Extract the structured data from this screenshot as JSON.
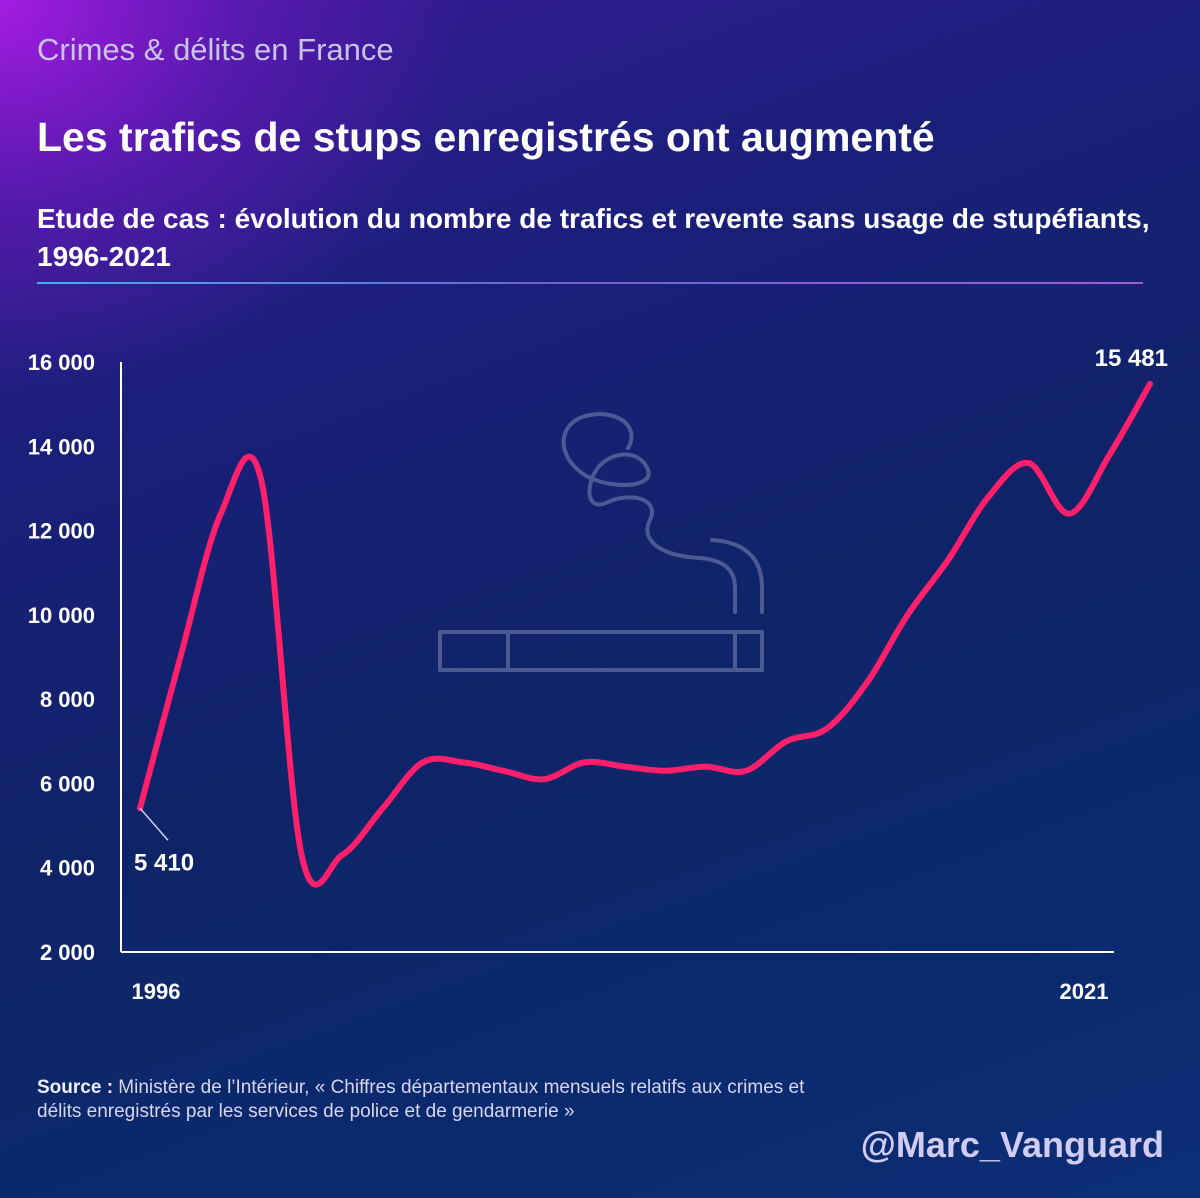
{
  "header": {
    "kicker": "Crimes & délits en France",
    "title": "Les trafics de stups enregistrés ont augmenté",
    "subtitle": "Etude de cas : évolution du nombre de trafics et revente sans usage de stupéfiants, 1996-2021"
  },
  "icon": "cigarette-smoke-icon",
  "colors": {
    "line": "#ff1f6b",
    "axis": "#ffffff",
    "icon": "#4c5a93"
  },
  "chart_data": {
    "type": "line",
    "title": "Etude de cas : évolution du nombre de trafics et revente sans usage de stupéfiants, 1996-2021",
    "xlabel": "",
    "ylabel": "",
    "ylim": [
      2000,
      16000
    ],
    "xlim": [
      1996,
      2021
    ],
    "y_ticks": [
      2000,
      4000,
      6000,
      8000,
      10000,
      12000,
      14000,
      16000
    ],
    "y_tick_labels": [
      "2 000",
      "4 000",
      "6 000",
      "8 000",
      "10 000",
      "12 000",
      "14 000",
      "16 000"
    ],
    "x_tick_labels": [
      "1996",
      "2021"
    ],
    "grid": false,
    "series": [
      {
        "name": "Trafics et revente sans usage de stupéfiants",
        "x": [
          1996,
          1997,
          1998,
          1999,
          2000,
          2001,
          2002,
          2003,
          2004,
          2005,
          2006,
          2007,
          2008,
          2009,
          2010,
          2011,
          2012,
          2013,
          2014,
          2015,
          2016,
          2017,
          2018,
          2019,
          2020,
          2021
        ],
        "values": [
          5410,
          9000,
          12400,
          13200,
          4300,
          4300,
          5400,
          6500,
          6500,
          6300,
          6100,
          6500,
          6400,
          6300,
          6400,
          6300,
          7000,
          7300,
          8400,
          10000,
          11300,
          12800,
          13600,
          12400,
          13800,
          15481
        ]
      }
    ],
    "annotations": [
      {
        "label": "5 410",
        "x": 1996,
        "value": 5410
      },
      {
        "label": "15 481",
        "x": 2021,
        "value": 15481
      }
    ]
  },
  "footer": {
    "source_label": "Source :",
    "source_text": " Ministère de l’Intérieur, « Chiffres départementaux mensuels relatifs aux crimes et délits enregistrés par les services de police et de gendarmerie »",
    "handle": "@Marc_Vanguard"
  }
}
